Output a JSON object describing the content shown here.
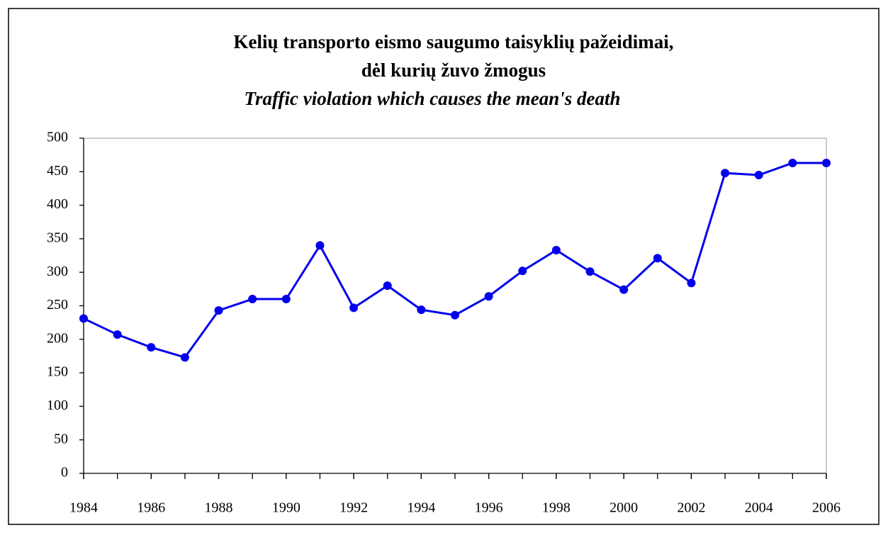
{
  "chart_data": {
    "type": "line",
    "title": [
      "Kelių transporto eismo saugumo taisyklių pažeidimai,",
      "dėl kurių žuvo žmogus"
    ],
    "subtitle": "Traffic violation which causes the mean's death",
    "x": [
      1984,
      1985,
      1986,
      1987,
      1988,
      1989,
      1990,
      1991,
      1992,
      1993,
      1994,
      1995,
      1996,
      1997,
      1998,
      1999,
      2000,
      2001,
      2002,
      2003,
      2004,
      2005,
      2006
    ],
    "series": [
      {
        "color": "#0000ee",
        "values": [
          231,
          207,
          188,
          173,
          243,
          260,
          260,
          340,
          247,
          280,
          244,
          236,
          264,
          302,
          333,
          301,
          274,
          321,
          284,
          448,
          445,
          463,
          463
        ]
      }
    ],
    "xlim": [
      1984,
      2006
    ],
    "xticks": [
      1984,
      1986,
      1988,
      1990,
      1992,
      1994,
      1996,
      1998,
      2000,
      2002,
      2004,
      2006
    ],
    "ylim": [
      0,
      500
    ],
    "yticks": [
      0,
      50,
      100,
      150,
      200,
      250,
      300,
      350,
      400,
      450,
      500
    ],
    "grid": false
  }
}
